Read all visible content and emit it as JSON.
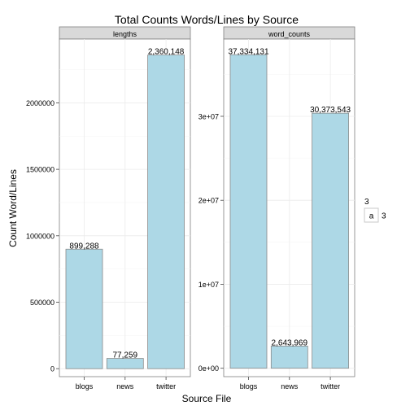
{
  "chart_data": {
    "type": "bar",
    "title": "Total Counts Words/Lines by Source",
    "xlabel": "Source File",
    "ylabel": "Count Word/Lines",
    "categories": [
      "blogs",
      "news",
      "twitter"
    ],
    "grid": true,
    "colors": {
      "bar_fill": "#add8e6",
      "bar_stroke": "#8a8a8a",
      "panel_bg": "#ffffff",
      "strip_bg": "#d9d9d9",
      "grid": "#ebebeb"
    },
    "panels": [
      {
        "name": "lengths",
        "values": [
          899288,
          77259,
          2360148
        ],
        "labels": [
          "899,288",
          "77,259",
          "2,360,148"
        ],
        "ylim": [
          -60000,
          2480000
        ],
        "ticks": [
          0,
          500000,
          1000000,
          1500000,
          2000000
        ],
        "tick_labels": [
          "0",
          "500000",
          "1000000",
          "1500000",
          "2000000"
        ]
      },
      {
        "name": "word_counts",
        "values": [
          37334131,
          2643969,
          30373543
        ],
        "labels": [
          "37,334,131",
          "2,643,969",
          "30,373,543"
        ],
        "ylim": [
          -1000000,
          39200000
        ],
        "ticks": [
          0,
          10000000,
          20000000,
          30000000
        ],
        "tick_labels": [
          "0e+00",
          "1e+07",
          "2e+07",
          "3e+07"
        ]
      }
    ],
    "legend": {
      "placement": "right",
      "title": "3",
      "key": "a",
      "label": "3"
    }
  }
}
